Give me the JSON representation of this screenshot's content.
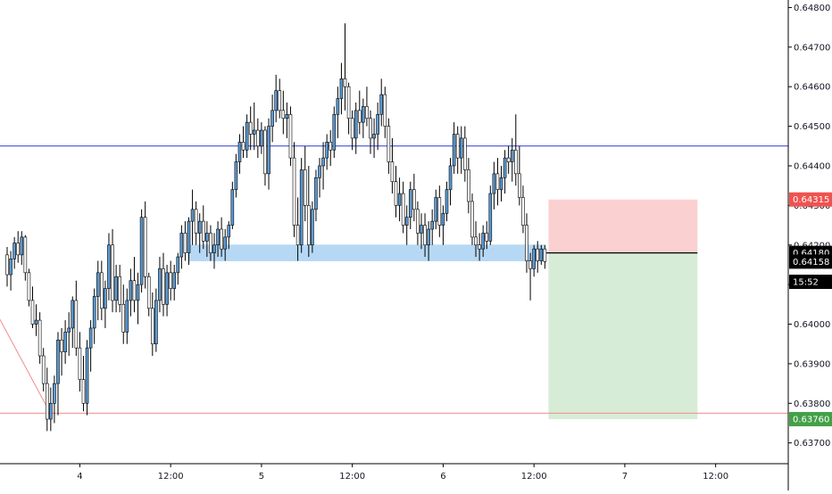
{
  "chart_data": {
    "type": "candlestick",
    "x_ticks": [
      "4",
      "12:00",
      "5",
      "12:00",
      "6",
      "12:00",
      "7",
      "12:00"
    ],
    "x_axis": {
      "tick_positions_in_bars": [
        20,
        45,
        70,
        95,
        120,
        145,
        170,
        195
      ],
      "total_bars": 217
    },
    "y_ticks": [
      0.637,
      0.638,
      0.639,
      0.64,
      0.641,
      0.642,
      0.643,
      0.644,
      0.645,
      0.646,
      0.647,
      0.648
    ],
    "ylim": [
      0.6367,
      0.6481
    ],
    "y_tick_labels": [
      "0.63700",
      "0.63800",
      "0.63900",
      "0.64000",
      "0.64100",
      "0.64200",
      "0.64300",
      "0.64400",
      "0.64500",
      "0.64600",
      "0.64700",
      "0.64800"
    ],
    "price_tags": [
      {
        "label": "0.64315",
        "value": 0.64315,
        "color": "#ef5350"
      },
      {
        "label": "0.64180",
        "value": 0.6418,
        "color": "#000000"
      },
      {
        "label": "0.64158",
        "value": 0.64158,
        "color": "#000000"
      },
      {
        "label": "15:52",
        "value": 0.64107,
        "color": "#000000"
      },
      {
        "label": "0.63760",
        "value": 0.6376,
        "color": "#43a047"
      }
    ],
    "horizontal_lines": [
      {
        "name": "resistance",
        "value": 0.6445,
        "color": "#2d3ad6"
      },
      {
        "name": "support",
        "value": 0.63775,
        "color": "#f28b8b"
      }
    ],
    "support_zone": {
      "from_bar": 50,
      "to_bar": 148,
      "low": 0.64168,
      "high": 0.64192,
      "color": "#9ecbf2"
    },
    "position": {
      "type": "short",
      "entry": 0.6418,
      "stop": 0.64315,
      "target": 0.6376,
      "from_bar": 149,
      "to_bar": 190,
      "entry_mark_bar": 148
    },
    "colors": {
      "bull": "#5b9bd5",
      "bear": "#ffffff",
      "wick": "#000000",
      "stop_fill": "#fbd0d0",
      "target_fill": "#d7ecd6"
    },
    "trend_line": {
      "from_bar": 0,
      "from_value": 0.6402,
      "to_bar": 11,
      "to_value": 0.6379,
      "color": "#f28b8b"
    },
    "candles": [
      [
        0.64175,
        0.64195,
        0.64095,
        0.64125
      ],
      [
        0.64125,
        0.64185,
        0.64085,
        0.64165
      ],
      [
        0.64165,
        0.6422,
        0.6414,
        0.64205
      ],
      [
        0.64205,
        0.64235,
        0.64155,
        0.64175
      ],
      [
        0.64175,
        0.64235,
        0.6415,
        0.6422
      ],
      [
        0.6422,
        0.64225,
        0.6411,
        0.6413
      ],
      [
        0.6413,
        0.6414,
        0.64045,
        0.6406
      ],
      [
        0.6406,
        0.64095,
        0.6399,
        0.64
      ],
      [
        0.64,
        0.6405,
        0.6397,
        0.6401
      ],
      [
        0.6401,
        0.6403,
        0.639,
        0.6392
      ],
      [
        0.6392,
        0.6394,
        0.6383,
        0.6385
      ],
      [
        0.6385,
        0.6389,
        0.6373,
        0.6376
      ],
      [
        0.6376,
        0.6384,
        0.6373,
        0.638
      ],
      [
        0.638,
        0.6387,
        0.6375,
        0.6385
      ],
      [
        0.6385,
        0.6398,
        0.6377,
        0.6396
      ],
      [
        0.6396,
        0.6399,
        0.6387,
        0.6393
      ],
      [
        0.6393,
        0.6401,
        0.639,
        0.6398
      ],
      [
        0.6398,
        0.6403,
        0.6392,
        0.6399
      ],
      [
        0.6399,
        0.6407,
        0.6394,
        0.6406
      ],
      [
        0.6406,
        0.6411,
        0.6392,
        0.6394
      ],
      [
        0.6394,
        0.6398,
        0.6383,
        0.6386
      ],
      [
        0.6386,
        0.6392,
        0.6378,
        0.638
      ],
      [
        0.638,
        0.6396,
        0.6377,
        0.6394
      ],
      [
        0.6394,
        0.6401,
        0.6388,
        0.6399
      ],
      [
        0.6399,
        0.6409,
        0.6395,
        0.6407
      ],
      [
        0.6407,
        0.6416,
        0.6401,
        0.6413
      ],
      [
        0.6413,
        0.6416,
        0.6401,
        0.6404
      ],
      [
        0.6404,
        0.6411,
        0.6399,
        0.6409
      ],
      [
        0.6409,
        0.6423,
        0.6406,
        0.642
      ],
      [
        0.642,
        0.6424,
        0.6403,
        0.6406
      ],
      [
        0.6406,
        0.6415,
        0.6403,
        0.6412
      ],
      [
        0.6412,
        0.6415,
        0.6403,
        0.6405
      ],
      [
        0.6405,
        0.641,
        0.6395,
        0.6398
      ],
      [
        0.6398,
        0.6409,
        0.6395,
        0.6406
      ],
      [
        0.6406,
        0.6414,
        0.6402,
        0.6411
      ],
      [
        0.6411,
        0.6417,
        0.6403,
        0.6406
      ],
      [
        0.6406,
        0.6413,
        0.64,
        0.641
      ],
      [
        0.641,
        0.6429,
        0.6408,
        0.6427
      ],
      [
        0.6427,
        0.6431,
        0.6409,
        0.6412
      ],
      [
        0.6412,
        0.6413,
        0.6402,
        0.6404
      ],
      [
        0.6404,
        0.6408,
        0.6392,
        0.6395
      ],
      [
        0.6395,
        0.6409,
        0.6393,
        0.6406
      ],
      [
        0.6406,
        0.6417,
        0.6403,
        0.6414
      ],
      [
        0.6414,
        0.6418,
        0.6402,
        0.6405
      ],
      [
        0.6405,
        0.6415,
        0.6402,
        0.6413
      ],
      [
        0.6413,
        0.6416,
        0.6406,
        0.6409
      ],
      [
        0.6409,
        0.6415,
        0.6406,
        0.6413
      ],
      [
        0.6413,
        0.6418,
        0.641,
        0.6417
      ],
      [
        0.6417,
        0.6425,
        0.6414,
        0.6423
      ],
      [
        0.6423,
        0.6426,
        0.6416,
        0.6418
      ],
      [
        0.6418,
        0.6427,
        0.6415,
        0.6426
      ],
      [
        0.6426,
        0.6434,
        0.642,
        0.6429
      ],
      [
        0.6429,
        0.6431,
        0.642,
        0.6423
      ],
      [
        0.6423,
        0.6428,
        0.6418,
        0.6426
      ],
      [
        0.6426,
        0.643,
        0.6419,
        0.6421
      ],
      [
        0.6421,
        0.6426,
        0.6417,
        0.6423
      ],
      [
        0.6423,
        0.6425,
        0.6416,
        0.6418
      ],
      [
        0.6418,
        0.6423,
        0.6414,
        0.642
      ],
      [
        0.642,
        0.6426,
        0.6417,
        0.6424
      ],
      [
        0.6424,
        0.6427,
        0.6417,
        0.6419
      ],
      [
        0.6419,
        0.6424,
        0.6416,
        0.6422
      ],
      [
        0.6422,
        0.6426,
        0.6419,
        0.6425
      ],
      [
        0.6425,
        0.6436,
        0.6424,
        0.6434
      ],
      [
        0.6434,
        0.6443,
        0.6432,
        0.6441
      ],
      [
        0.6441,
        0.6448,
        0.6438,
        0.6446
      ],
      [
        0.6446,
        0.645,
        0.6442,
        0.6444
      ],
      [
        0.6444,
        0.6453,
        0.6442,
        0.6451
      ],
      [
        0.6451,
        0.6455,
        0.6444,
        0.6448
      ],
      [
        0.6448,
        0.6456,
        0.6444,
        0.6449
      ],
      [
        0.6449,
        0.6452,
        0.6442,
        0.6445
      ],
      [
        0.6445,
        0.6451,
        0.6443,
        0.6449
      ],
      [
        0.6449,
        0.645,
        0.6435,
        0.6438
      ],
      [
        0.6438,
        0.6452,
        0.6434,
        0.645
      ],
      [
        0.645,
        0.6458,
        0.6446,
        0.6454
      ],
      [
        0.6454,
        0.6463,
        0.6451,
        0.6459
      ],
      [
        0.6459,
        0.6462,
        0.6452,
        0.6454
      ],
      [
        0.6454,
        0.6459,
        0.6448,
        0.6452
      ],
      [
        0.6452,
        0.6456,
        0.6447,
        0.6453
      ],
      [
        0.6453,
        0.6455,
        0.644,
        0.6442
      ],
      [
        0.6442,
        0.6446,
        0.6422,
        0.6425
      ],
      [
        0.6425,
        0.6432,
        0.6416,
        0.642
      ],
      [
        0.642,
        0.6442,
        0.6418,
        0.6439
      ],
      [
        0.6439,
        0.6445,
        0.6426,
        0.643
      ],
      [
        0.643,
        0.644,
        0.6417,
        0.642
      ],
      [
        0.642,
        0.6431,
        0.6418,
        0.6429
      ],
      [
        0.6429,
        0.6439,
        0.6426,
        0.6437
      ],
      [
        0.6437,
        0.6442,
        0.6432,
        0.644
      ],
      [
        0.644,
        0.6446,
        0.6434,
        0.6442
      ],
      [
        0.6442,
        0.6448,
        0.6439,
        0.6446
      ],
      [
        0.6446,
        0.6449,
        0.644,
        0.6444
      ],
      [
        0.6444,
        0.6455,
        0.6442,
        0.6453
      ],
      [
        0.6453,
        0.646,
        0.6447,
        0.6457
      ],
      [
        0.6457,
        0.6466,
        0.6453,
        0.6462
      ],
      [
        0.6462,
        0.6476,
        0.6454,
        0.646
      ],
      [
        0.646,
        0.6461,
        0.6448,
        0.6452
      ],
      [
        0.6452,
        0.6454,
        0.6444,
        0.6447
      ],
      [
        0.6447,
        0.6456,
        0.6443,
        0.6454
      ],
      [
        0.6454,
        0.6459,
        0.6448,
        0.6451
      ],
      [
        0.6451,
        0.6457,
        0.6447,
        0.6455
      ],
      [
        0.6455,
        0.646,
        0.645,
        0.6452
      ],
      [
        0.6452,
        0.6454,
        0.6443,
        0.6447
      ],
      [
        0.6447,
        0.6452,
        0.6442,
        0.6448
      ],
      [
        0.6448,
        0.6456,
        0.6444,
        0.6453
      ],
      [
        0.6453,
        0.6462,
        0.645,
        0.6458
      ],
      [
        0.6458,
        0.646,
        0.6447,
        0.645
      ],
      [
        0.645,
        0.6452,
        0.6438,
        0.6441
      ],
      [
        0.6441,
        0.6447,
        0.6433,
        0.6436
      ],
      [
        0.6436,
        0.644,
        0.6427,
        0.643
      ],
      [
        0.643,
        0.6437,
        0.6426,
        0.6433
      ],
      [
        0.6433,
        0.6436,
        0.6423,
        0.6425
      ],
      [
        0.6425,
        0.643,
        0.642,
        0.6427
      ],
      [
        0.6427,
        0.6436,
        0.6424,
        0.6434
      ],
      [
        0.6434,
        0.6438,
        0.6426,
        0.6429
      ],
      [
        0.6429,
        0.6431,
        0.642,
        0.6423
      ],
      [
        0.6423,
        0.6428,
        0.6419,
        0.6425
      ],
      [
        0.6425,
        0.6428,
        0.6417,
        0.642
      ],
      [
        0.642,
        0.6426,
        0.6416,
        0.6424
      ],
      [
        0.6424,
        0.6429,
        0.642,
        0.6426
      ],
      [
        0.6426,
        0.6434,
        0.6424,
        0.6432
      ],
      [
        0.6432,
        0.6435,
        0.6422,
        0.6425
      ],
      [
        0.6425,
        0.643,
        0.642,
        0.6428
      ],
      [
        0.6428,
        0.6436,
        0.6426,
        0.6434
      ],
      [
        0.6434,
        0.6442,
        0.643,
        0.644
      ],
      [
        0.644,
        0.6451,
        0.6438,
        0.6448
      ],
      [
        0.6448,
        0.645,
        0.6438,
        0.6442
      ],
      [
        0.6442,
        0.645,
        0.6438,
        0.6447
      ],
      [
        0.6447,
        0.645,
        0.6436,
        0.6439
      ],
      [
        0.6439,
        0.6442,
        0.6428,
        0.6431
      ],
      [
        0.6431,
        0.6433,
        0.642,
        0.6422
      ],
      [
        0.6422,
        0.6426,
        0.6417,
        0.642
      ],
      [
        0.642,
        0.6423,
        0.6416,
        0.6419
      ],
      [
        0.6419,
        0.6425,
        0.6417,
        0.6423
      ],
      [
        0.6423,
        0.6426,
        0.6419,
        0.6421
      ],
      [
        0.6421,
        0.6435,
        0.642,
        0.6433
      ],
      [
        0.6433,
        0.6441,
        0.6429,
        0.6438
      ],
      [
        0.6438,
        0.6442,
        0.643,
        0.6434
      ],
      [
        0.6434,
        0.644,
        0.6431,
        0.6437
      ],
      [
        0.6437,
        0.6444,
        0.6433,
        0.6442
      ],
      [
        0.6442,
        0.6445,
        0.6438,
        0.6441
      ],
      [
        0.6441,
        0.6447,
        0.6436,
        0.6444
      ],
      [
        0.6444,
        0.6453,
        0.6435,
        0.6438
      ],
      [
        0.6438,
        0.6445,
        0.643,
        0.6432
      ],
      [
        0.6432,
        0.6435,
        0.6423,
        0.6425
      ],
      [
        0.6425,
        0.6428,
        0.6413,
        0.6416
      ],
      [
        0.6416,
        0.6418,
        0.6406,
        0.6414
      ],
      [
        0.6414,
        0.642,
        0.6412,
        0.6419
      ],
      [
        0.6419,
        0.6421,
        0.6413,
        0.6416
      ],
      [
        0.6416,
        0.642,
        0.6415,
        0.6419
      ],
      [
        0.6419,
        0.642,
        0.6414,
        0.64158
      ]
    ]
  }
}
